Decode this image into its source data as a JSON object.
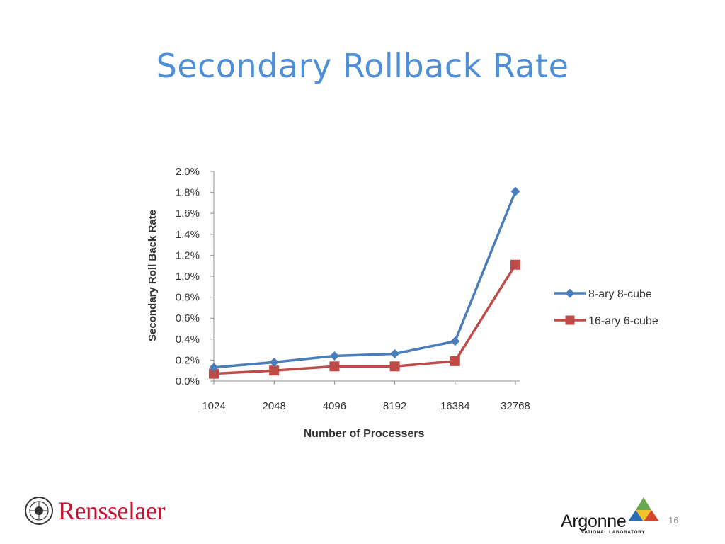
{
  "slide": {
    "title": "Secondary Rollback Rate",
    "page_number": "16"
  },
  "logos": {
    "rensselaer": "Rensselaer",
    "argonne_name": "Argonne",
    "argonne_sub": "NATIONAL LABORATORY"
  },
  "colors": {
    "title": "#4f8fd8",
    "series_1": "#4a7ebb",
    "series_2": "#be4b48",
    "axis": "#8c8c8c",
    "rensselaer": "#c41230"
  },
  "chart_data": {
    "type": "line",
    "title": "",
    "xlabel": "Number of Processers",
    "ylabel": "Secondary Roll Back Rate",
    "categories": [
      "1024",
      "2048",
      "4096",
      "8192",
      "16384",
      "32768"
    ],
    "yticks": [
      "0.0%",
      "0.2%",
      "0.4%",
      "0.6%",
      "0.8%",
      "1.0%",
      "1.2%",
      "1.4%",
      "1.6%",
      "1.8%",
      "2.0%"
    ],
    "ylim": [
      0,
      2.0
    ],
    "y_unit": "%",
    "grid": false,
    "legend_position": "right",
    "series": [
      {
        "name": "8-ary 8-cube",
        "marker": "diamond",
        "color": "#4a7ebb",
        "values": [
          0.13,
          0.18,
          0.24,
          0.26,
          0.38,
          1.81
        ]
      },
      {
        "name": "16-ary 6-cube",
        "marker": "square",
        "color": "#be4b48",
        "values": [
          0.07,
          0.1,
          0.14,
          0.14,
          0.19,
          1.11
        ]
      }
    ]
  }
}
